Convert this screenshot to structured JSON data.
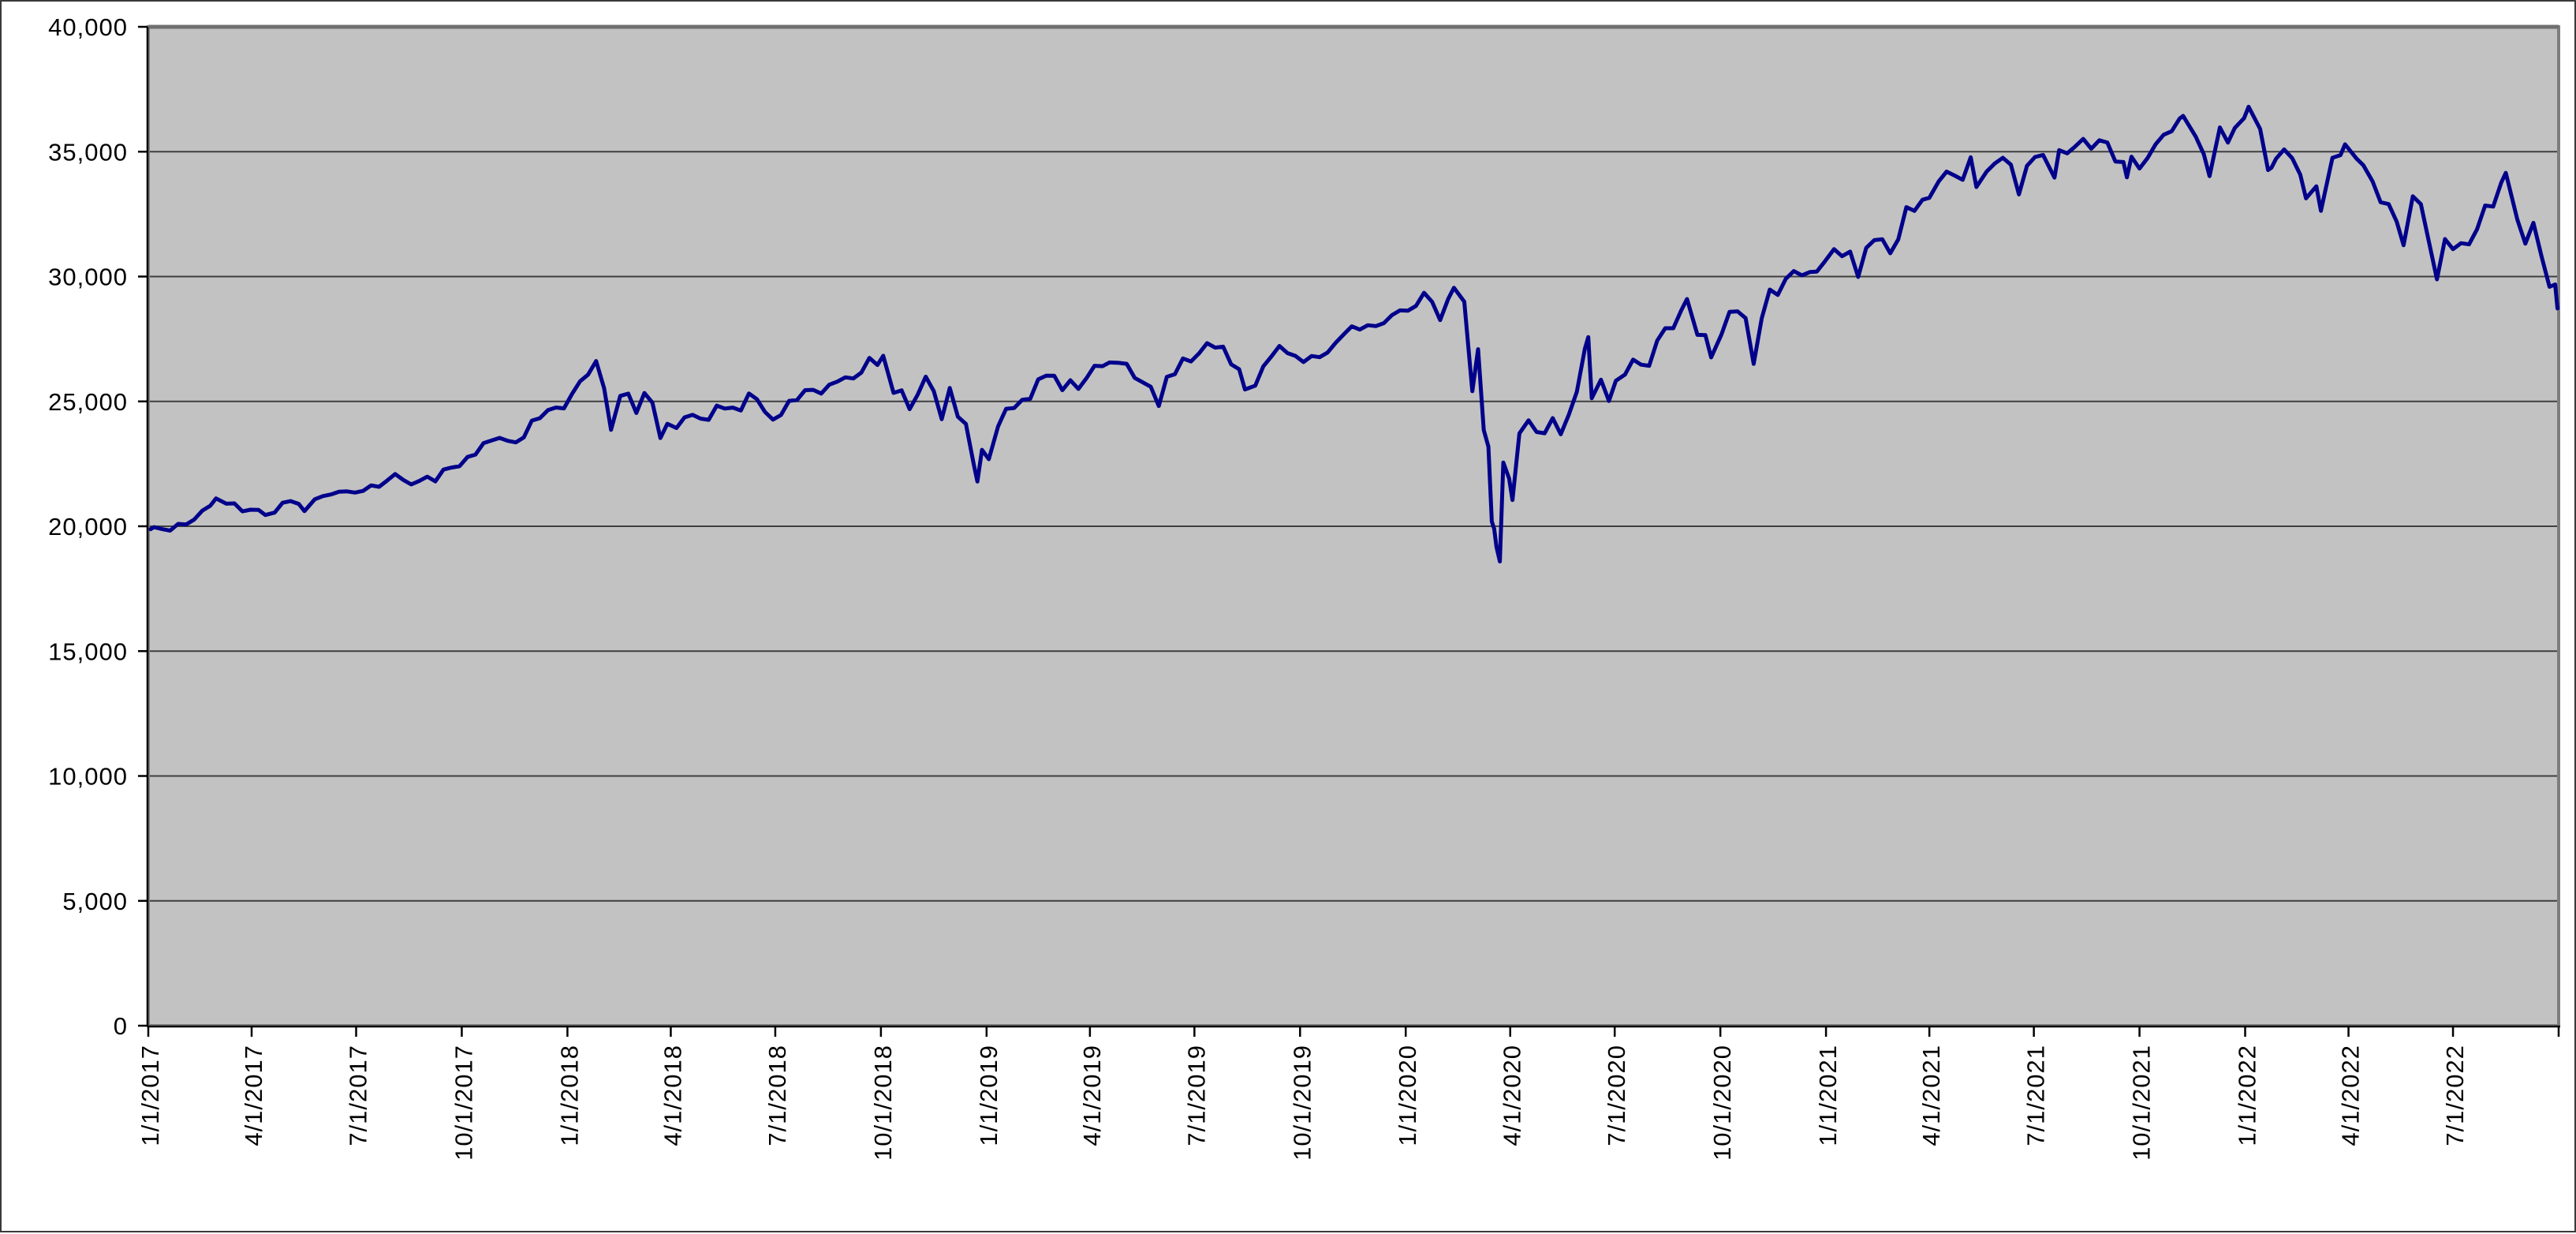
{
  "window": {
    "background": "#FFFFFF",
    "frame_border_color": "#3A3A3A"
  },
  "chart_data": {
    "type": "line",
    "title": "",
    "xlabel": "",
    "ylabel": "",
    "legend": "none",
    "grid": "horizontal",
    "plot_bg": "#C2C2C2",
    "plot_border_color": "#7E7E7E",
    "axis_color": "#000000",
    "gridline_color": "#3F3F3F",
    "line_color": "#00008B",
    "line_width": 5,
    "ylim": [
      0,
      40000
    ],
    "y_tick_interval": 5000,
    "x_range": [
      "2017-01-01",
      "2022-10-01"
    ],
    "y_ticks": [
      {
        "value": 0,
        "label": "0"
      },
      {
        "value": 5000,
        "label": "5,000"
      },
      {
        "value": 10000,
        "label": "10,000"
      },
      {
        "value": 15000,
        "label": "15,000"
      },
      {
        "value": 20000,
        "label": "20,000"
      },
      {
        "value": 25000,
        "label": "25,000"
      },
      {
        "value": 30000,
        "label": "30,000"
      },
      {
        "value": 35000,
        "label": "35,000"
      },
      {
        "value": 40000,
        "label": "40,000"
      }
    ],
    "x_ticks": [
      {
        "date": "2017-01-01",
        "label": "1/1/2017"
      },
      {
        "date": "2017-04-01",
        "label": "4/1/2017"
      },
      {
        "date": "2017-07-01",
        "label": "7/1/2017"
      },
      {
        "date": "2017-10-01",
        "label": "10/1/2017"
      },
      {
        "date": "2018-01-01",
        "label": "1/1/2018"
      },
      {
        "date": "2018-04-01",
        "label": "4/1/2018"
      },
      {
        "date": "2018-07-01",
        "label": "7/1/2018"
      },
      {
        "date": "2018-10-01",
        "label": "10/1/2018"
      },
      {
        "date": "2019-01-01",
        "label": "1/1/2019"
      },
      {
        "date": "2019-04-01",
        "label": "4/1/2019"
      },
      {
        "date": "2019-07-01",
        "label": "7/1/2019"
      },
      {
        "date": "2019-10-01",
        "label": "10/1/2019"
      },
      {
        "date": "2020-01-01",
        "label": "1/1/2020"
      },
      {
        "date": "2020-04-01",
        "label": "4/1/2020"
      },
      {
        "date": "2020-07-01",
        "label": "7/1/2020"
      },
      {
        "date": "2020-10-01",
        "label": "10/1/2020"
      },
      {
        "date": "2021-01-01",
        "label": "1/1/2021"
      },
      {
        "date": "2021-04-01",
        "label": "4/1/2021"
      },
      {
        "date": "2021-07-01",
        "label": "7/1/2021"
      },
      {
        "date": "2021-10-01",
        "label": "10/1/2021"
      },
      {
        "date": "2022-01-01",
        "label": "1/1/2022"
      },
      {
        "date": "2022-04-01",
        "label": "4/1/2022"
      },
      {
        "date": "2022-07-01",
        "label": "7/1/2022"
      },
      {
        "date": "2022-10-01",
        "label": ""
      }
    ],
    "points": [
      [
        "2017-01-03",
        19882
      ],
      [
        "2017-01-06",
        19964
      ],
      [
        "2017-01-13",
        19886
      ],
      [
        "2017-01-20",
        19827
      ],
      [
        "2017-01-27",
        20094
      ],
      [
        "2017-02-03",
        20071
      ],
      [
        "2017-02-10",
        20269
      ],
      [
        "2017-02-17",
        20624
      ],
      [
        "2017-02-24",
        20822
      ],
      [
        "2017-03-01",
        21116
      ],
      [
        "2017-03-10",
        20903
      ],
      [
        "2017-03-17",
        20915
      ],
      [
        "2017-03-24",
        20597
      ],
      [
        "2017-03-31",
        20663
      ],
      [
        "2017-04-07",
        20656
      ],
      [
        "2017-04-13",
        20453
      ],
      [
        "2017-04-21",
        20548
      ],
      [
        "2017-04-28",
        20940
      ],
      [
        "2017-05-05",
        21007
      ],
      [
        "2017-05-12",
        20896
      ],
      [
        "2017-05-17",
        20607
      ],
      [
        "2017-05-26",
        21080
      ],
      [
        "2017-06-02",
        21206
      ],
      [
        "2017-06-09",
        21272
      ],
      [
        "2017-06-16",
        21384
      ],
      [
        "2017-06-23",
        21395
      ],
      [
        "2017-06-30",
        21350
      ],
      [
        "2017-07-07",
        21414
      ],
      [
        "2017-07-14",
        21638
      ],
      [
        "2017-07-21",
        21580
      ],
      [
        "2017-07-28",
        21830
      ],
      [
        "2017-08-04",
        22093
      ],
      [
        "2017-08-11",
        21858
      ],
      [
        "2017-08-18",
        21675
      ],
      [
        "2017-08-25",
        21814
      ],
      [
        "2017-09-01",
        21988
      ],
      [
        "2017-09-08",
        21798
      ],
      [
        "2017-09-15",
        22268
      ],
      [
        "2017-09-22",
        22350
      ],
      [
        "2017-09-29",
        22405
      ],
      [
        "2017-10-06",
        22774
      ],
      [
        "2017-10-13",
        22872
      ],
      [
        "2017-10-20",
        23329
      ],
      [
        "2017-10-27",
        23434
      ],
      [
        "2017-11-03",
        23539
      ],
      [
        "2017-11-10",
        23422
      ],
      [
        "2017-11-17",
        23358
      ],
      [
        "2017-11-24",
        23558
      ],
      [
        "2017-12-01",
        24232
      ],
      [
        "2017-12-08",
        24329
      ],
      [
        "2017-12-15",
        24652
      ],
      [
        "2017-12-22",
        24754
      ],
      [
        "2017-12-29",
        24719
      ],
      [
        "2018-01-05",
        25296
      ],
      [
        "2018-01-12",
        25803
      ],
      [
        "2018-01-19",
        26072
      ],
      [
        "2018-01-26",
        26617
      ],
      [
        "2018-02-02",
        25521
      ],
      [
        "2018-02-08",
        23860
      ],
      [
        "2018-02-16",
        25219
      ],
      [
        "2018-02-23",
        25310
      ],
      [
        "2018-03-02",
        24538
      ],
      [
        "2018-03-09",
        25336
      ],
      [
        "2018-03-16",
        24947
      ],
      [
        "2018-03-23",
        23533
      ],
      [
        "2018-03-29",
        24103
      ],
      [
        "2018-04-06",
        23933
      ],
      [
        "2018-04-13",
        24360
      ],
      [
        "2018-04-20",
        24463
      ],
      [
        "2018-04-27",
        24311
      ],
      [
        "2018-05-04",
        24263
      ],
      [
        "2018-05-11",
        24831
      ],
      [
        "2018-05-18",
        24715
      ],
      [
        "2018-05-25",
        24753
      ],
      [
        "2018-06-01",
        24635
      ],
      [
        "2018-06-08",
        25317
      ],
      [
        "2018-06-15",
        25090
      ],
      [
        "2018-06-22",
        24581
      ],
      [
        "2018-06-29",
        24271
      ],
      [
        "2018-07-06",
        24456
      ],
      [
        "2018-07-13",
        25019
      ],
      [
        "2018-07-20",
        25058
      ],
      [
        "2018-07-27",
        25451
      ],
      [
        "2018-08-03",
        25463
      ],
      [
        "2018-08-10",
        25313
      ],
      [
        "2018-08-17",
        25669
      ],
      [
        "2018-08-24",
        25790
      ],
      [
        "2018-08-31",
        25965
      ],
      [
        "2018-09-07",
        25917
      ],
      [
        "2018-09-14",
        26154
      ],
      [
        "2018-09-21",
        26744
      ],
      [
        "2018-09-28",
        26458
      ],
      [
        "2018-10-03",
        26828
      ],
      [
        "2018-10-12",
        25340
      ],
      [
        "2018-10-19",
        25444
      ],
      [
        "2018-10-26",
        24688
      ],
      [
        "2018-11-02",
        25271
      ],
      [
        "2018-11-09",
        25989
      ],
      [
        "2018-11-16",
        25413
      ],
      [
        "2018-11-23",
        24286
      ],
      [
        "2018-11-30",
        25538
      ],
      [
        "2018-12-07",
        24389
      ],
      [
        "2018-12-14",
        24101
      ],
      [
        "2018-12-21",
        22445
      ],
      [
        "2018-12-24",
        21792
      ],
      [
        "2018-12-28",
        23062
      ],
      [
        "2019-01-03",
        22686
      ],
      [
        "2019-01-11",
        23996
      ],
      [
        "2019-01-18",
        24706
      ],
      [
        "2019-01-25",
        24737
      ],
      [
        "2019-02-01",
        25064
      ],
      [
        "2019-02-08",
        25106
      ],
      [
        "2019-02-15",
        25883
      ],
      [
        "2019-02-22",
        26032
      ],
      [
        "2019-03-01",
        26026
      ],
      [
        "2019-03-08",
        25450
      ],
      [
        "2019-03-15",
        25849
      ],
      [
        "2019-03-22",
        25502
      ],
      [
        "2019-03-29",
        25929
      ],
      [
        "2019-04-05",
        26425
      ],
      [
        "2019-04-12",
        26412
      ],
      [
        "2019-04-18",
        26560
      ],
      [
        "2019-04-26",
        26543
      ],
      [
        "2019-05-03",
        26505
      ],
      [
        "2019-05-10",
        25942
      ],
      [
        "2019-05-17",
        25764
      ],
      [
        "2019-05-24",
        25586
      ],
      [
        "2019-05-31",
        24815
      ],
      [
        "2019-06-07",
        25984
      ],
      [
        "2019-06-14",
        26090
      ],
      [
        "2019-06-21",
        26719
      ],
      [
        "2019-06-28",
        26600
      ],
      [
        "2019-07-05",
        26922
      ],
      [
        "2019-07-12",
        27332
      ],
      [
        "2019-07-19",
        27154
      ],
      [
        "2019-07-26",
        27192
      ],
      [
        "2019-08-02",
        26485
      ],
      [
        "2019-08-09",
        26287
      ],
      [
        "2019-08-14",
        25479
      ],
      [
        "2019-08-23",
        25629
      ],
      [
        "2019-08-30",
        26403
      ],
      [
        "2019-09-06",
        26797
      ],
      [
        "2019-09-13",
        27219
      ],
      [
        "2019-09-20",
        26935
      ],
      [
        "2019-09-27",
        26820
      ],
      [
        "2019-10-04",
        26574
      ],
      [
        "2019-10-11",
        26817
      ],
      [
        "2019-10-18",
        26770
      ],
      [
        "2019-10-25",
        26958
      ],
      [
        "2019-11-01",
        27347
      ],
      [
        "2019-11-08",
        27681
      ],
      [
        "2019-11-15",
        28005
      ],
      [
        "2019-11-22",
        27876
      ],
      [
        "2019-11-29",
        28051
      ],
      [
        "2019-12-06",
        28015
      ],
      [
        "2019-12-13",
        28135
      ],
      [
        "2019-12-20",
        28455
      ],
      [
        "2019-12-27",
        28645
      ],
      [
        "2020-01-03",
        28635
      ],
      [
        "2020-01-10",
        28824
      ],
      [
        "2020-01-17",
        29348
      ],
      [
        "2020-01-24",
        28990
      ],
      [
        "2020-01-31",
        28256
      ],
      [
        "2020-02-07",
        29103
      ],
      [
        "2020-02-12",
        29551
      ],
      [
        "2020-02-21",
        28992
      ],
      [
        "2020-02-28",
        25409
      ],
      [
        "2020-03-04",
        27091
      ],
      [
        "2020-03-09",
        23851
      ],
      [
        "2020-03-13",
        23186
      ],
      [
        "2020-03-16",
        20188
      ],
      [
        "2020-03-18",
        19899
      ],
      [
        "2020-03-20",
        19174
      ],
      [
        "2020-03-23",
        18592
      ],
      [
        "2020-03-26",
        22552
      ],
      [
        "2020-03-31",
        21917
      ],
      [
        "2020-04-03",
        21053
      ],
      [
        "2020-04-09",
        23719
      ],
      [
        "2020-04-17",
        24242
      ],
      [
        "2020-04-24",
        23775
      ],
      [
        "2020-05-01",
        23724
      ],
      [
        "2020-05-08",
        24331
      ],
      [
        "2020-05-15",
        23685
      ],
      [
        "2020-05-22",
        24465
      ],
      [
        "2020-05-29",
        25383
      ],
      [
        "2020-06-05",
        27111
      ],
      [
        "2020-06-08",
        27572
      ],
      [
        "2020-06-11",
        25128
      ],
      [
        "2020-06-19",
        25871
      ],
      [
        "2020-06-26",
        25016
      ],
      [
        "2020-07-02",
        25827
      ],
      [
        "2020-07-10",
        26075
      ],
      [
        "2020-07-17",
        26672
      ],
      [
        "2020-07-24",
        26470
      ],
      [
        "2020-07-31",
        26428
      ],
      [
        "2020-08-07",
        27433
      ],
      [
        "2020-08-14",
        27931
      ],
      [
        "2020-08-21",
        27930
      ],
      [
        "2020-08-28",
        28654
      ],
      [
        "2020-09-02",
        29101
      ],
      [
        "2020-09-11",
        27666
      ],
      [
        "2020-09-18",
        27657
      ],
      [
        "2020-09-23",
        26763
      ],
      [
        "2020-10-02",
        27683
      ],
      [
        "2020-10-09",
        28587
      ],
      [
        "2020-10-16",
        28606
      ],
      [
        "2020-10-23",
        28336
      ],
      [
        "2020-10-30",
        26502
      ],
      [
        "2020-11-06",
        28323
      ],
      [
        "2020-11-13",
        29480
      ],
      [
        "2020-11-20",
        29263
      ],
      [
        "2020-11-27",
        29910
      ],
      [
        "2020-12-04",
        30218
      ],
      [
        "2020-12-11",
        30046
      ],
      [
        "2020-12-18",
        30179
      ],
      [
        "2020-12-24",
        30200
      ],
      [
        "2020-12-31",
        30606
      ],
      [
        "2021-01-08",
        31098
      ],
      [
        "2021-01-15",
        30814
      ],
      [
        "2021-01-22",
        30997
      ],
      [
        "2021-01-29",
        29983
      ],
      [
        "2021-02-05",
        31148
      ],
      [
        "2021-02-12",
        31458
      ],
      [
        "2021-02-19",
        31494
      ],
      [
        "2021-02-26",
        30932
      ],
      [
        "2021-03-05",
        31496
      ],
      [
        "2021-03-12",
        32779
      ],
      [
        "2021-03-19",
        32628
      ],
      [
        "2021-03-26",
        33073
      ],
      [
        "2021-04-01",
        33153
      ],
      [
        "2021-04-09",
        33800
      ],
      [
        "2021-04-16",
        34201
      ],
      [
        "2021-04-23",
        34043
      ],
      [
        "2021-04-30",
        33875
      ],
      [
        "2021-05-07",
        34778
      ],
      [
        "2021-05-12",
        33587
      ],
      [
        "2021-05-21",
        34208
      ],
      [
        "2021-05-28",
        34529
      ],
      [
        "2021-06-04",
        34756
      ],
      [
        "2021-06-11",
        34480
      ],
      [
        "2021-06-18",
        33290
      ],
      [
        "2021-06-25",
        34434
      ],
      [
        "2021-07-02",
        34786
      ],
      [
        "2021-07-09",
        34870
      ],
      [
        "2021-07-19",
        33962
      ],
      [
        "2021-07-23",
        35062
      ],
      [
        "2021-07-30",
        34935
      ],
      [
        "2021-08-06",
        35209
      ],
      [
        "2021-08-13",
        35515
      ],
      [
        "2021-08-20",
        35120
      ],
      [
        "2021-08-27",
        35456
      ],
      [
        "2021-09-03",
        35369
      ],
      [
        "2021-09-10",
        34608
      ],
      [
        "2021-09-17",
        34585
      ],
      [
        "2021-09-20",
        33970
      ],
      [
        "2021-09-24",
        34798
      ],
      [
        "2021-10-01",
        34326
      ],
      [
        "2021-10-08",
        34746
      ],
      [
        "2021-10-15",
        35295
      ],
      [
        "2021-10-22",
        35677
      ],
      [
        "2021-10-29",
        35820
      ],
      [
        "2021-11-05",
        36328
      ],
      [
        "2021-11-08",
        36432
      ],
      [
        "2021-11-19",
        35602
      ],
      [
        "2021-11-26",
        34899
      ],
      [
        "2021-12-01",
        34022
      ],
      [
        "2021-12-10",
        35971
      ],
      [
        "2021-12-17",
        35365
      ],
      [
        "2021-12-23",
        35950
      ],
      [
        "2021-12-31",
        36338
      ],
      [
        "2022-01-04",
        36800
      ],
      [
        "2022-01-14",
        35912
      ],
      [
        "2022-01-21",
        34265
      ],
      [
        "2022-01-24",
        34364
      ],
      [
        "2022-01-28",
        34725
      ],
      [
        "2022-02-04",
        35090
      ],
      [
        "2022-02-11",
        34738
      ],
      [
        "2022-02-18",
        34079
      ],
      [
        "2022-02-23",
        33131
      ],
      [
        "2022-03-04",
        33615
      ],
      [
        "2022-03-08",
        32632
      ],
      [
        "2022-03-18",
        34755
      ],
      [
        "2022-03-25",
        34861
      ],
      [
        "2022-03-29",
        35294
      ],
      [
        "2022-04-08",
        34721
      ],
      [
        "2022-04-14",
        34451
      ],
      [
        "2022-04-22",
        33811
      ],
      [
        "2022-04-29",
        32977
      ],
      [
        "2022-05-06",
        32899
      ],
      [
        "2022-05-13",
        32197
      ],
      [
        "2022-05-19",
        31253
      ],
      [
        "2022-05-27",
        33213
      ],
      [
        "2022-06-03",
        32900
      ],
      [
        "2022-06-10",
        31393
      ],
      [
        "2022-06-17",
        29889
      ],
      [
        "2022-06-24",
        31501
      ],
      [
        "2022-07-01",
        31097
      ],
      [
        "2022-07-08",
        31338
      ],
      [
        "2022-07-15",
        31288
      ],
      [
        "2022-07-22",
        31899
      ],
      [
        "2022-07-29",
        32845
      ],
      [
        "2022-08-05",
        32803
      ],
      [
        "2022-08-12",
        33761
      ],
      [
        "2022-08-16",
        34152
      ],
      [
        "2022-08-26",
        32283
      ],
      [
        "2022-09-02",
        31318
      ],
      [
        "2022-09-09",
        32152
      ],
      [
        "2022-09-16",
        30822
      ],
      [
        "2022-09-23",
        29590
      ],
      [
        "2022-09-28",
        29684
      ],
      [
        "2022-09-30",
        28725
      ]
    ]
  }
}
